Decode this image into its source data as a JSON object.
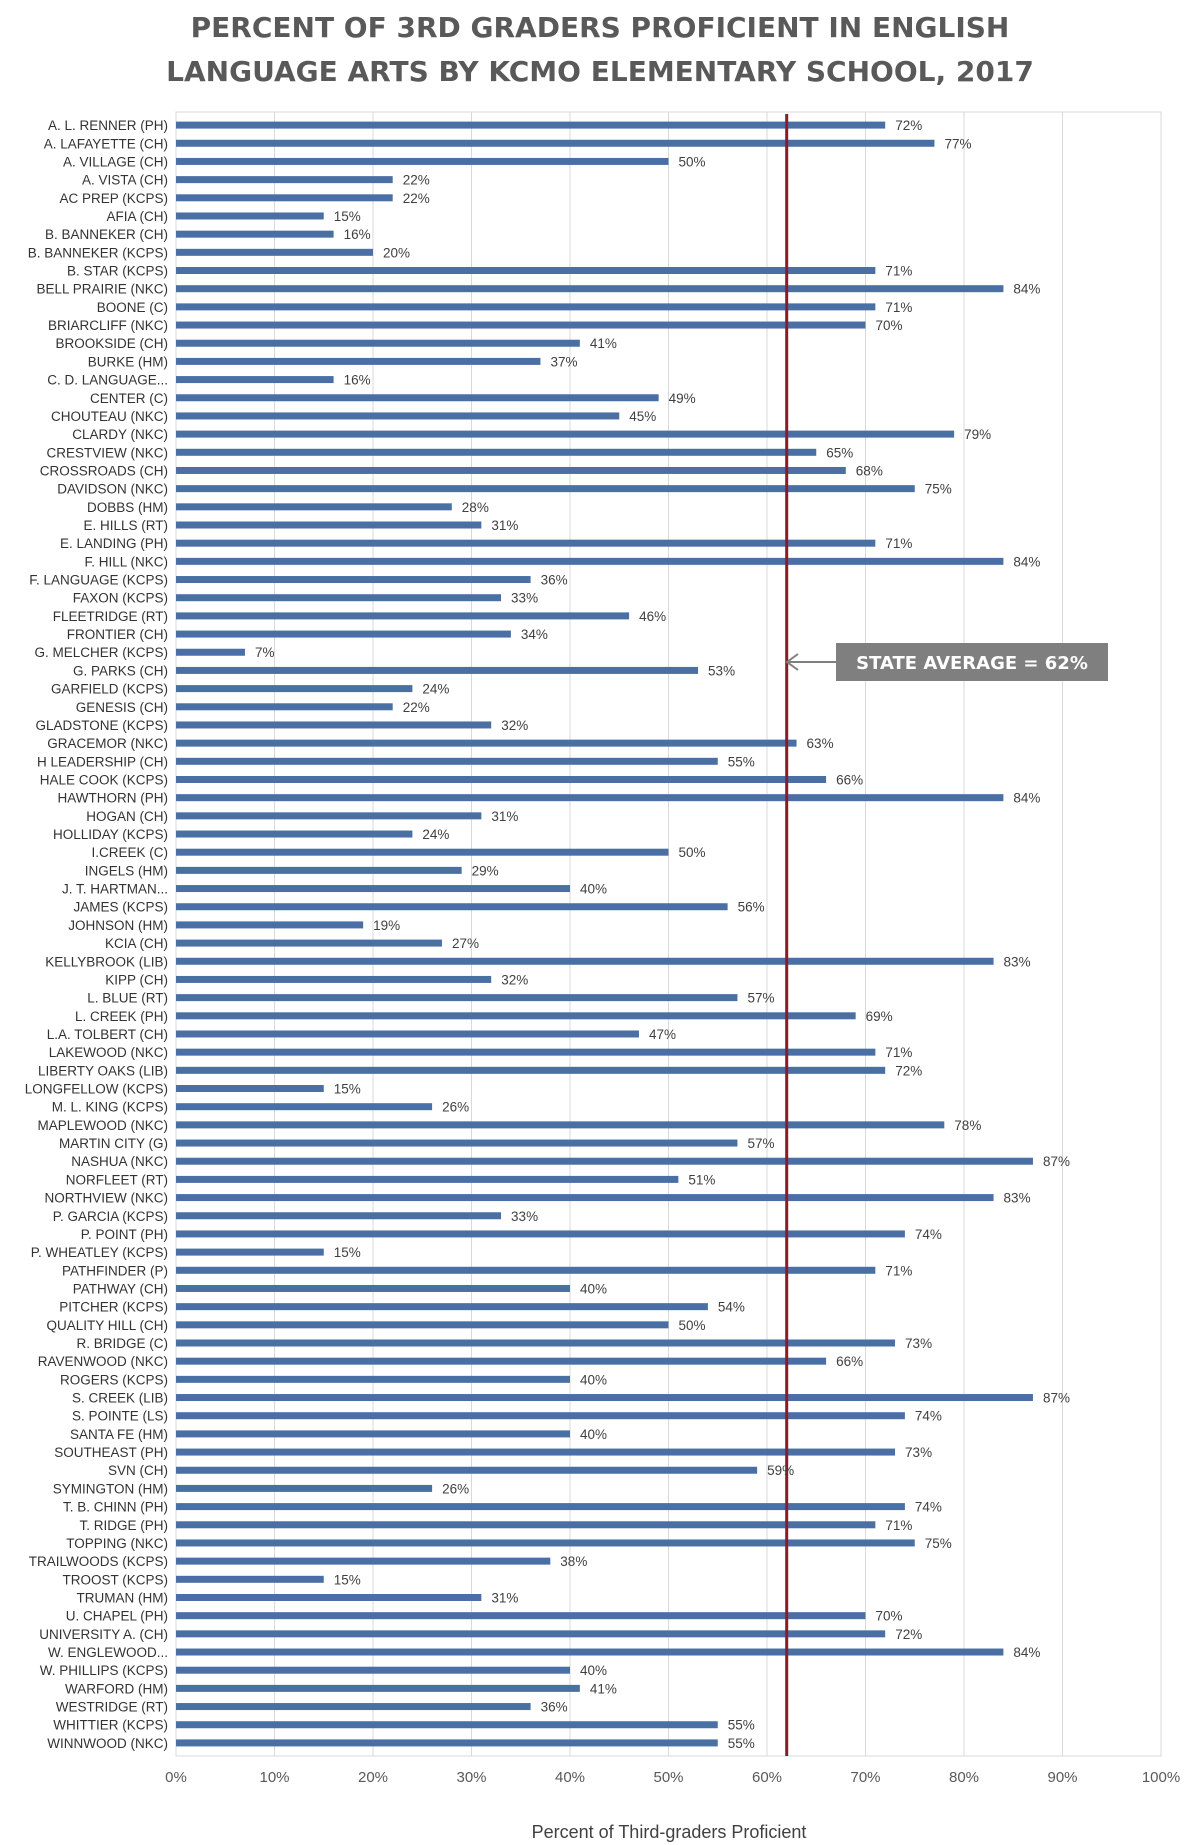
{
  "chart_data": {
    "type": "bar",
    "orientation": "horizontal",
    "title": "PERCENT OF 3RD GRADERS PROFICIENT IN ENGLISH LANGUAGE ARTS BY KCMO ELEMENTARY SCHOOL, 2017",
    "title_lines": [
      "PERCENT OF 3RD GRADERS PROFICIENT IN ENGLISH",
      "LANGUAGE ARTS BY KCMO ELEMENTARY SCHOOL, 2017"
    ],
    "xlabel": "Percent of Third-graders Proficient",
    "ylabel": "",
    "xlim": [
      0,
      100
    ],
    "xticks": [
      "0%",
      "10%",
      "20%",
      "30%",
      "40%",
      "50%",
      "60%",
      "70%",
      "80%",
      "90%",
      "100%"
    ],
    "grid": true,
    "legend": "none",
    "bar_color": "#4a6fa5",
    "reference_line": {
      "value": 62,
      "color": "#8b1a2b",
      "label": "STATE AVERAGE = 62%"
    },
    "categories": [
      "A. L. RENNER (PH)",
      "A. LAFAYETTE (CH)",
      "A. VILLAGE (CH)",
      "A. VISTA (CH)",
      "AC PREP (KCPS)",
      "AFIA (CH)",
      "B. BANNEKER (CH)",
      "B. BANNEKER (KCPS)",
      "B. STAR (KCPS)",
      "BELL PRAIRIE (NKC)",
      "BOONE (C)",
      "BRIARCLIFF (NKC)",
      "BROOKSIDE (CH)",
      "BURKE (HM)",
      "C. D. LANGUAGE...",
      "CENTER (C)",
      "CHOUTEAU (NKC)",
      "CLARDY (NKC)",
      "CRESTVIEW (NKC)",
      "CROSSROADS (CH)",
      "DAVIDSON (NKC)",
      "DOBBS (HM)",
      "E. HILLS (RT)",
      "E. LANDING (PH)",
      "F. HILL (NKC)",
      "F. LANGUAGE (KCPS)",
      "FAXON (KCPS)",
      "FLEETRIDGE (RT)",
      "FRONTIER (CH)",
      "G. MELCHER (KCPS)",
      "G. PARKS (CH)",
      "GARFIELD (KCPS)",
      "GENESIS (CH)",
      "GLADSTONE (KCPS)",
      "GRACEMOR (NKC)",
      "H LEADERSHIP (CH)",
      "HALE COOK (KCPS)",
      "HAWTHORN (PH)",
      "HOGAN (CH)",
      "HOLLIDAY (KCPS)",
      "I.CREEK (C)",
      "INGELS (HM)",
      "J. T. HARTMAN...",
      "JAMES (KCPS)",
      "JOHNSON (HM)",
      "KCIA (CH)",
      "KELLYBROOK (LIB)",
      "KIPP (CH)",
      "L. BLUE (RT)",
      "L. CREEK (PH)",
      "L.A. TOLBERT (CH)",
      "LAKEWOOD (NKC)",
      "LIBERTY OAKS (LIB)",
      "LONGFELLOW (KCPS)",
      "M. L. KING (KCPS)",
      "MAPLEWOOD (NKC)",
      "MARTIN CITY (G)",
      "NASHUA (NKC)",
      "NORFLEET (RT)",
      "NORTHVIEW (NKC)",
      "P. GARCIA (KCPS)",
      "P. POINT (PH)",
      "P. WHEATLEY (KCPS)",
      "PATHFINDER (P)",
      "PATHWAY (CH)",
      "PITCHER (KCPS)",
      "QUALITY HILL (CH)",
      "R. BRIDGE (C)",
      "RAVENWOOD (NKC)",
      "ROGERS (KCPS)",
      "S. CREEK (LIB)",
      "S. POINTE (LS)",
      "SANTA FE (HM)",
      "SOUTHEAST (PH)",
      "SVN (CH)",
      "SYMINGTON (HM)",
      "T. B. CHINN (PH)",
      "T. RIDGE (PH)",
      "TOPPING (NKC)",
      "TRAILWOODS (KCPS)",
      "TROOST (KCPS)",
      "TRUMAN (HM)",
      "U. CHAPEL (PH)",
      "UNIVERSITY A. (CH)",
      "W. ENGLEWOOD...",
      "W. PHILLIPS (KCPS)",
      "WARFORD (HM)",
      "WESTRIDGE (RT)",
      "WHITTIER (KCPS)",
      "WINNWOOD (NKC)"
    ],
    "values": [
      72,
      77,
      50,
      22,
      22,
      15,
      16,
      20,
      71,
      84,
      71,
      70,
      41,
      37,
      16,
      49,
      45,
      79,
      65,
      68,
      75,
      28,
      31,
      71,
      84,
      36,
      33,
      46,
      34,
      7,
      53,
      24,
      22,
      32,
      63,
      55,
      66,
      84,
      31,
      24,
      50,
      29,
      40,
      56,
      19,
      27,
      83,
      32,
      57,
      69,
      47,
      71,
      72,
      15,
      26,
      78,
      57,
      87,
      51,
      83,
      33,
      74,
      15,
      71,
      40,
      54,
      50,
      73,
      66,
      40,
      87,
      74,
      40,
      73,
      59,
      26,
      74,
      71,
      75,
      38,
      15,
      31,
      70,
      72,
      84,
      40,
      41,
      36,
      55,
      55
    ]
  }
}
